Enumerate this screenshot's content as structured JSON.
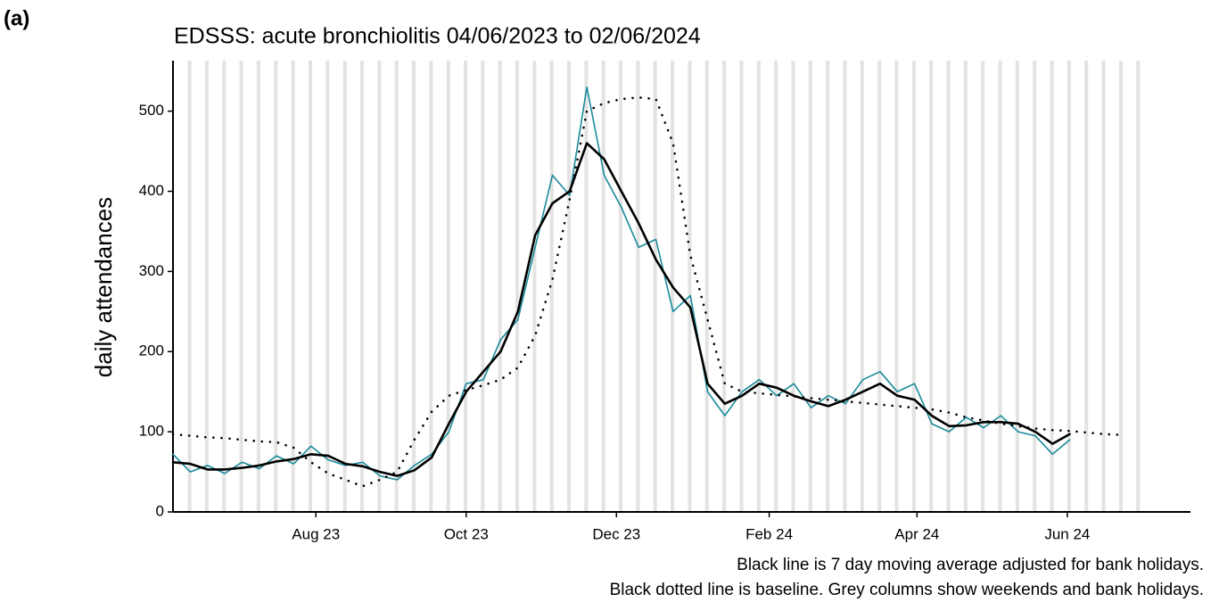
{
  "panel_label": "(a)",
  "chart_data": {
    "type": "line",
    "title": "EDSSS: acute bronchiolitis 04/06/2023 to 02/06/2024",
    "y_label": "daily attendances",
    "notes": [
      "Black line is 7 day moving average adjusted for bank holidays.",
      "Black dotted line is baseline. Grey columns show weekends and bank holidays."
    ],
    "x": [
      0,
      7,
      14,
      21,
      28,
      35,
      42,
      49,
      56,
      63,
      70,
      77,
      84,
      91,
      98,
      105,
      112,
      119,
      126,
      133,
      140,
      147,
      154,
      161,
      168,
      175,
      182,
      189,
      196,
      203,
      210,
      217,
      224,
      231,
      238,
      245,
      252,
      259,
      266,
      273,
      280,
      287,
      294,
      301,
      308,
      315,
      322,
      329,
      336,
      343,
      350,
      357,
      364,
      371,
      378,
      385
    ],
    "xlim": [
      0,
      413
    ],
    "xticks": [
      {
        "value": 58,
        "label": "Aug 23"
      },
      {
        "value": 119,
        "label": "Oct 23"
      },
      {
        "value": 180,
        "label": "Dec 23"
      },
      {
        "value": 242,
        "label": "Feb 24"
      },
      {
        "value": 302,
        "label": "Apr 24"
      },
      {
        "value": 363,
        "label": "Jun 24"
      }
    ],
    "ylim": [
      0,
      563
    ],
    "yticks": [
      0,
      100,
      200,
      300,
      400,
      500
    ],
    "series": [
      {
        "color": "#1a8a9a",
        "style": "solid",
        "width": 1.6,
        "values": [
          72,
          50,
          58,
          48,
          62,
          54,
          70,
          60,
          82,
          65,
          58,
          62,
          45,
          40,
          58,
          72,
          100,
          160,
          165,
          215,
          240,
          330,
          420,
          395,
          530,
          420,
          380,
          330,
          340,
          250,
          270,
          150,
          120,
          150,
          165,
          145,
          160,
          130,
          145,
          135,
          165,
          175,
          150,
          160,
          110,
          100,
          118,
          105,
          120,
          100,
          95,
          72,
          90,
          null,
          null,
          null
        ]
      },
      {
        "color": "#000000",
        "style": "solid",
        "width": 2.6,
        "values": [
          62,
          60,
          53,
          53,
          55,
          58,
          63,
          66,
          72,
          70,
          60,
          57,
          50,
          45,
          52,
          68,
          110,
          150,
          175,
          200,
          250,
          345,
          385,
          400,
          460,
          440,
          400,
          360,
          315,
          280,
          255,
          160,
          135,
          145,
          160,
          155,
          145,
          138,
          132,
          140,
          150,
          160,
          145,
          140,
          120,
          107,
          108,
          112,
          112,
          110,
          100,
          85,
          97,
          null,
          null,
          null
        ]
      },
      {
        "color": "#000000",
        "style": "dotted",
        "width": 2.6,
        "values": [
          97,
          95,
          93,
          92,
          90,
          88,
          87,
          80,
          62,
          48,
          40,
          32,
          40,
          50,
          90,
          125,
          145,
          152,
          158,
          165,
          180,
          220,
          290,
          390,
          500,
          510,
          515,
          517,
          515,
          460,
          320,
          240,
          160,
          150,
          148,
          146,
          144,
          142,
          140,
          138,
          136,
          134,
          132,
          130,
          128,
          124,
          118,
          114,
          110,
          107,
          104,
          102,
          101,
          99,
          97,
          96
        ]
      }
    ]
  }
}
